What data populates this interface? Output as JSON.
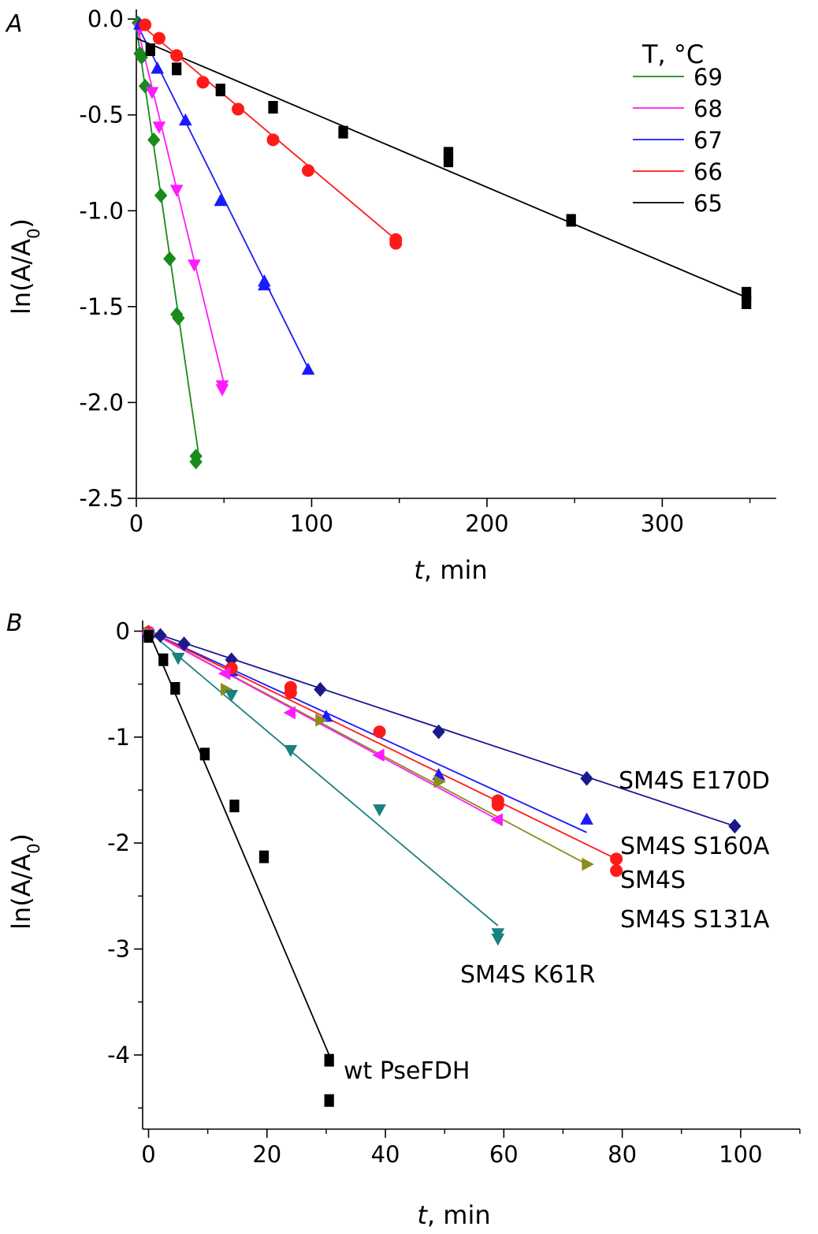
{
  "chart_data": [
    {
      "panel": "A",
      "type": "scatter",
      "xlabel_italic": "t",
      "xlabel_rest": ", min",
      "ylabel": "ln(A/A",
      "ylabel_sub": "0",
      "ylabel_close": ")",
      "xlim": [
        0,
        365
      ],
      "ylim": [
        -2.5,
        0.05
      ],
      "xticks": [
        0,
        100,
        200,
        300
      ],
      "xtick_labels": [
        "0",
        "100",
        "200",
        "300"
      ],
      "yticks": [
        0,
        -0.5,
        -1.0,
        -1.5,
        -2.0,
        -2.5
      ],
      "ytick_labels": [
        "0.0",
        "-0.5",
        "-1.0",
        "-1.5",
        "-2.0",
        "-2.5"
      ],
      "legend": {
        "title": "T, °C",
        "position": "top-right",
        "entries": [
          "69",
          "68",
          "67",
          "66",
          "65"
        ]
      },
      "series": [
        {
          "name": "69",
          "color": "#1a8a1a",
          "marker": "diamond",
          "fit": [
            [
              0,
              -0.04
            ],
            [
              36,
              -2.3
            ]
          ],
          "points": [
            [
              1,
              -0.02
            ],
            [
              2,
              -0.18
            ],
            [
              3,
              -0.2
            ],
            [
              5,
              -0.35
            ],
            [
              10,
              -0.63
            ],
            [
              14,
              -0.92
            ],
            [
              19,
              -1.25
            ],
            [
              23,
              -1.54
            ],
            [
              24,
              -1.56
            ],
            [
              34,
              -2.28
            ],
            [
              34,
              -2.31
            ]
          ]
        },
        {
          "name": "68",
          "color": "#ff1aff",
          "marker": "triangle-down",
          "fit": [
            [
              0,
              -0.02
            ],
            [
              50,
              -1.9
            ]
          ],
          "points": [
            [
              2,
              -0.05
            ],
            [
              9,
              -0.38
            ],
            [
              13,
              -0.56
            ],
            [
              23,
              -0.89
            ],
            [
              33,
              -1.28
            ],
            [
              49,
              -1.91
            ],
            [
              49,
              -1.93
            ]
          ]
        },
        {
          "name": "67",
          "color": "#1a1aff",
          "marker": "triangle-up",
          "fit": [
            [
              0,
              -0.02
            ],
            [
              99,
              -1.84
            ]
          ],
          "points": [
            [
              2,
              -0.03
            ],
            [
              12,
              -0.26
            ],
            [
              28,
              -0.53
            ],
            [
              48,
              -0.95
            ],
            [
              73,
              -1.37
            ],
            [
              73,
              -1.39
            ],
            [
              98,
              -1.83
            ]
          ]
        },
        {
          "name": "66",
          "color": "#ff1a1a",
          "marker": "circle",
          "fit": [
            [
              0,
              -0.01
            ],
            [
              148,
              -1.15
            ]
          ],
          "points": [
            [
              5,
              -0.03
            ],
            [
              13,
              -0.1
            ],
            [
              23,
              -0.19
            ],
            [
              38,
              -0.33
            ],
            [
              58,
              -0.47
            ],
            [
              78,
              -0.63
            ],
            [
              98,
              -0.79
            ],
            [
              148,
              -1.15
            ],
            [
              148,
              -1.17
            ]
          ]
        },
        {
          "name": "65",
          "color": "#000000",
          "marker": "square",
          "fit": [
            [
              0,
              -0.1
            ],
            [
              350,
              -1.46
            ]
          ],
          "points": [
            [
              8,
              -0.16
            ],
            [
              23,
              -0.26
            ],
            [
              48,
              -0.37
            ],
            [
              78,
              -0.46
            ],
            [
              118,
              -0.59
            ],
            [
              178,
              -0.7
            ],
            [
              178,
              -0.74
            ],
            [
              248,
              -1.05
            ],
            [
              348,
              -1.43
            ],
            [
              348,
              -1.48
            ]
          ]
        }
      ]
    },
    {
      "panel": "B",
      "type": "scatter",
      "xlabel_italic": "t",
      "xlabel_rest": ", min",
      "ylabel": "ln(A/A",
      "ylabel_sub": "0",
      "ylabel_close": ")",
      "xlim": [
        -1,
        110
      ],
      "ylim": [
        -4.7,
        0.1
      ],
      "xticks": [
        0,
        20,
        40,
        60,
        80,
        100
      ],
      "xtick_labels": [
        "0",
        "20",
        "40",
        "60",
        "80",
        "100"
      ],
      "yticks": [
        0,
        -1,
        -2,
        -3,
        -4
      ],
      "ytick_labels": [
        "0",
        "-1",
        "-2",
        "-3",
        "-4"
      ],
      "series": [
        {
          "name": "SM4S E170D",
          "color": "#1a1a8c",
          "marker": "diamond",
          "fit": [
            [
              0,
              0
            ],
            [
              99,
              -1.84
            ]
          ],
          "points": [
            [
              0,
              -0.01
            ],
            [
              2,
              -0.04
            ],
            [
              6,
              -0.12
            ],
            [
              14,
              -0.27
            ],
            [
              29,
              -0.55
            ],
            [
              49,
              -0.95
            ],
            [
              74,
              -1.39
            ],
            [
              99,
              -1.84
            ]
          ]
        },
        {
          "name": "SM4S S160A",
          "color": "#1a1aff",
          "marker": "triangle-up",
          "fit": [
            [
              0,
              0
            ],
            [
              74,
              -1.9
            ]
          ],
          "points": [
            [
              0,
              -0.02
            ],
            [
              14,
              -0.38
            ],
            [
              30,
              -0.81
            ],
            [
              49,
              -1.36
            ],
            [
              74,
              -1.78
            ]
          ]
        },
        {
          "name": "SM4S",
          "color": "#ff1a1a",
          "marker": "circle",
          "fit": [
            [
              0,
              0
            ],
            [
              79,
              -2.15
            ]
          ],
          "points": [
            [
              0,
              -0.01
            ],
            [
              14,
              -0.35
            ],
            [
              24,
              -0.53
            ],
            [
              24,
              -0.58
            ],
            [
              39,
              -0.95
            ],
            [
              59,
              -1.6
            ],
            [
              59,
              -1.64
            ],
            [
              79,
              -2.15
            ],
            [
              79,
              -2.26
            ]
          ]
        },
        {
          "name": "SM4S S131A",
          "color": "#8c8c1a",
          "marker": "triangle-right",
          "fit": [
            [
              0,
              0
            ],
            [
              74,
              -2.2
            ]
          ],
          "points": [
            [
              0,
              -0.02
            ],
            [
              13,
              -0.55
            ],
            [
              29,
              -0.84
            ],
            [
              49,
              -1.42
            ],
            [
              74,
              -2.2
            ]
          ]
        },
        {
          "name": "",
          "color": "#ff1aff",
          "marker": "triangle-left",
          "fit": [
            [
              0,
              0
            ],
            [
              59,
              -1.78
            ]
          ],
          "points": [
            [
              0,
              -0.02
            ],
            [
              13,
              -0.4
            ],
            [
              24,
              -0.77
            ],
            [
              39,
              -1.17
            ],
            [
              59,
              -1.78
            ]
          ]
        },
        {
          "name": "SM4S K61R",
          "color": "#1a8080",
          "marker": "triangle-down",
          "fit": [
            [
              0,
              0
            ],
            [
              59,
              -2.78
            ]
          ],
          "points": [
            [
              0,
              -0.03
            ],
            [
              5,
              -0.25
            ],
            [
              14,
              -0.6
            ],
            [
              24,
              -1.12
            ],
            [
              39,
              -1.68
            ],
            [
              59,
              -2.85
            ],
            [
              59,
              -2.9
            ]
          ]
        },
        {
          "name": "wt PseFDH",
          "color": "#000000",
          "marker": "square",
          "fit": [
            [
              0,
              0
            ],
            [
              30.5,
              -4.0
            ]
          ],
          "points": [
            [
              0,
              -0.05
            ],
            [
              2.5,
              -0.27
            ],
            [
              4.5,
              -0.54
            ],
            [
              9.5,
              -1.16
            ],
            [
              14.5,
              -1.65
            ],
            [
              19.5,
              -2.13
            ],
            [
              30.5,
              -4.05
            ],
            [
              30.5,
              -4.43
            ]
          ]
        }
      ],
      "series_labels": [
        "SM4S E170D",
        "SM4S S160A",
        "SM4S",
        "SM4S S131A",
        "SM4S K61R",
        "wt PseFDH"
      ]
    }
  ]
}
